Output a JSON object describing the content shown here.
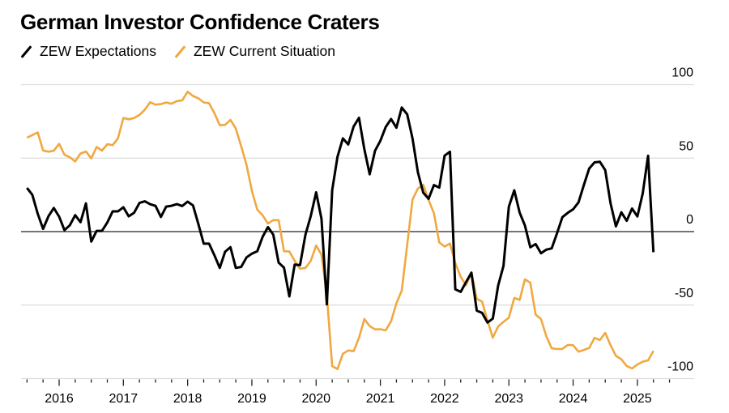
{
  "chart_data": {
    "type": "line",
    "title": "German Investor Confidence Craters",
    "xlabel": "",
    "ylabel": "",
    "ylim": [
      -100,
      100
    ],
    "yticks": [
      "100",
      "50",
      "0",
      "-50",
      "-100"
    ],
    "ytick_values": [
      100,
      50,
      0,
      -50,
      -100
    ],
    "xticks": [
      "2016",
      "2017",
      "2018",
      "2019",
      "2020",
      "2021",
      "2022",
      "2023",
      "2024",
      "2025"
    ],
    "x_start": "2015-07",
    "x_frequency": "monthly",
    "grid": true,
    "legend_position": "top-left",
    "series": [
      {
        "name": "ZEW Expectations",
        "color": "#000000",
        "values": [
          29.7,
          25.0,
          12.1,
          1.9,
          10.4,
          16.1,
          10.2,
          1.0,
          4.3,
          11.2,
          6.4,
          19.2,
          -6.8,
          0.5,
          0.5,
          6.2,
          13.8,
          13.8,
          16.6,
          10.4,
          12.8,
          19.5,
          20.6,
          18.6,
          17.5,
          10.0,
          17.0,
          17.6,
          18.7,
          17.4,
          20.4,
          17.8,
          5.1,
          -8.2,
          -8.2,
          -16.1,
          -24.7,
          -13.7,
          -10.6,
          -24.7,
          -24.1,
          -17.5,
          -15.0,
          -13.4,
          -3.6,
          3.1,
          -2.1,
          -21.1,
          -24.5,
          -44.1,
          -22.5,
          -22.8,
          -2.1,
          10.7,
          26.7,
          8.7,
          -49.5,
          28.2,
          51.0,
          63.4,
          59.3,
          71.5,
          77.4,
          56.1,
          39.0,
          55.0,
          61.8,
          71.2,
          76.6,
          70.7,
          84.4,
          79.8,
          63.3,
          40.4,
          26.5,
          22.3,
          31.7,
          29.9,
          51.7,
          54.3,
          -39.3,
          -41.0,
          -34.3,
          -28.0,
          -53.8,
          -55.3,
          -61.9,
          -59.2,
          -36.7,
          -23.3,
          16.9,
          28.1,
          13.0,
          4.1,
          -10.7,
          -8.5,
          -14.7,
          -12.3,
          -11.4,
          -1.1,
          9.8,
          12.8,
          15.2,
          19.9,
          31.7,
          42.9,
          47.1,
          47.5,
          41.8,
          19.2,
          3.6,
          13.1,
          7.4,
          15.7,
          10.3,
          26.0,
          51.6,
          -14.0
        ]
      },
      {
        "name": "ZEW Current Situation",
        "color": "#F0A840",
        "values": [
          63.9,
          65.7,
          67.5,
          55.2,
          54.4,
          55.0,
          59.7,
          52.3,
          50.6,
          47.7,
          53.1,
          54.5,
          49.8,
          57.6,
          55.1,
          59.5,
          58.8,
          63.5,
          77.3,
          76.4,
          77.3,
          79.4,
          83.0,
          88.0,
          86.4,
          86.7,
          87.9,
          87.0,
          88.8,
          89.3,
          95.2,
          92.3,
          90.7,
          87.9,
          87.4,
          80.6,
          72.4,
          72.6,
          76.0,
          70.1,
          58.2,
          45.3,
          27.6,
          15.0,
          11.1,
          5.5,
          7.8,
          7.8,
          -13.4,
          -13.5,
          -19.9,
          -25.3,
          -24.7,
          -19.9,
          -9.5,
          -15.7,
          -43.1,
          -91.5,
          -93.5,
          -83.1,
          -80.9,
          -81.3,
          -72.3,
          -59.5,
          -64.3,
          -66.5,
          -66.4,
          -67.2,
          -61.0,
          -48.8,
          -40.1,
          -9.1,
          21.9,
          29.3,
          31.9,
          21.6,
          12.5,
          -7.4,
          -10.2,
          -8.1,
          -21.4,
          -30.8,
          -36.5,
          -27.6,
          -45.8,
          -47.6,
          -60.5,
          -72.2,
          -64.5,
          -61.4,
          -58.6,
          -45.1,
          -46.5,
          -32.5,
          -34.8,
          -56.5,
          -59.5,
          -71.3,
          -79.4,
          -79.9,
          -79.8,
          -77.1,
          -77.3,
          -81.7,
          -80.5,
          -79.2,
          -72.3,
          -73.8,
          -68.9,
          -77.3,
          -84.5,
          -86.9,
          -91.4,
          -93.1,
          -90.4,
          -88.5,
          -87.6,
          -81.2
        ]
      }
    ]
  }
}
